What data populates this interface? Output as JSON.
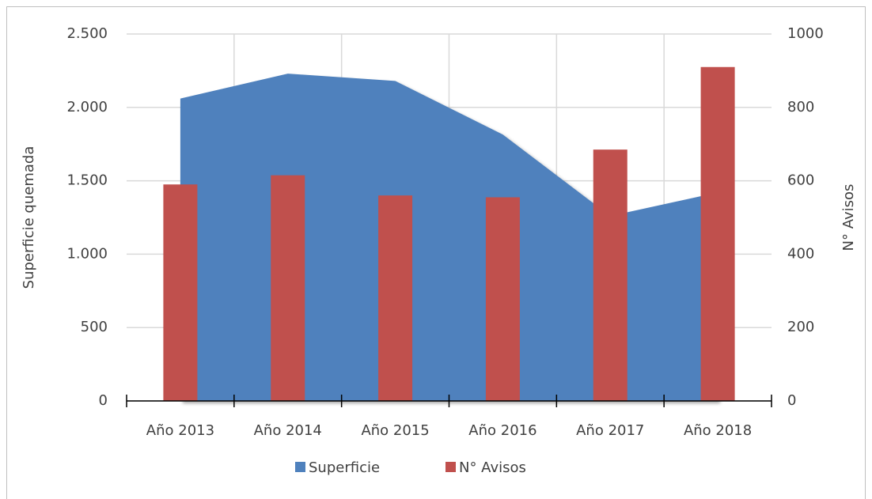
{
  "chart_data": {
    "type": "bar",
    "categories": [
      "Año 2013",
      "Año 2014",
      "Año 2015",
      "Año 2016",
      "Año 2017",
      "Año 2018"
    ],
    "series": [
      {
        "name": "Superficie",
        "type": "area",
        "color": "#4f81bd",
        "values": [
          2060,
          2230,
          2180,
          1815,
          1260,
          1420
        ]
      },
      {
        "name": "N° Avisos",
        "type": "bar",
        "axis": "y2",
        "color": "#c0504d",
        "values": [
          590,
          615,
          560,
          555,
          685,
          910
        ]
      }
    ],
    "ylabel": "Superficie quemada",
    "y2label": "N° Avisos",
    "ylim": [
      0,
      2500
    ],
    "yticks": [
      0,
      500,
      {
        "value": 1000,
        "label": "1.000"
      },
      {
        "value": 1500,
        "label": "1.500"
      },
      {
        "value": 2000,
        "label": "2.000"
      },
      {
        "value": 2500,
        "label": "2.500"
      }
    ],
    "y2lim": [
      0,
      1000
    ],
    "y2ticks": [
      0,
      200,
      400,
      600,
      800,
      1000
    ],
    "grid": true,
    "legend": "bottom"
  }
}
